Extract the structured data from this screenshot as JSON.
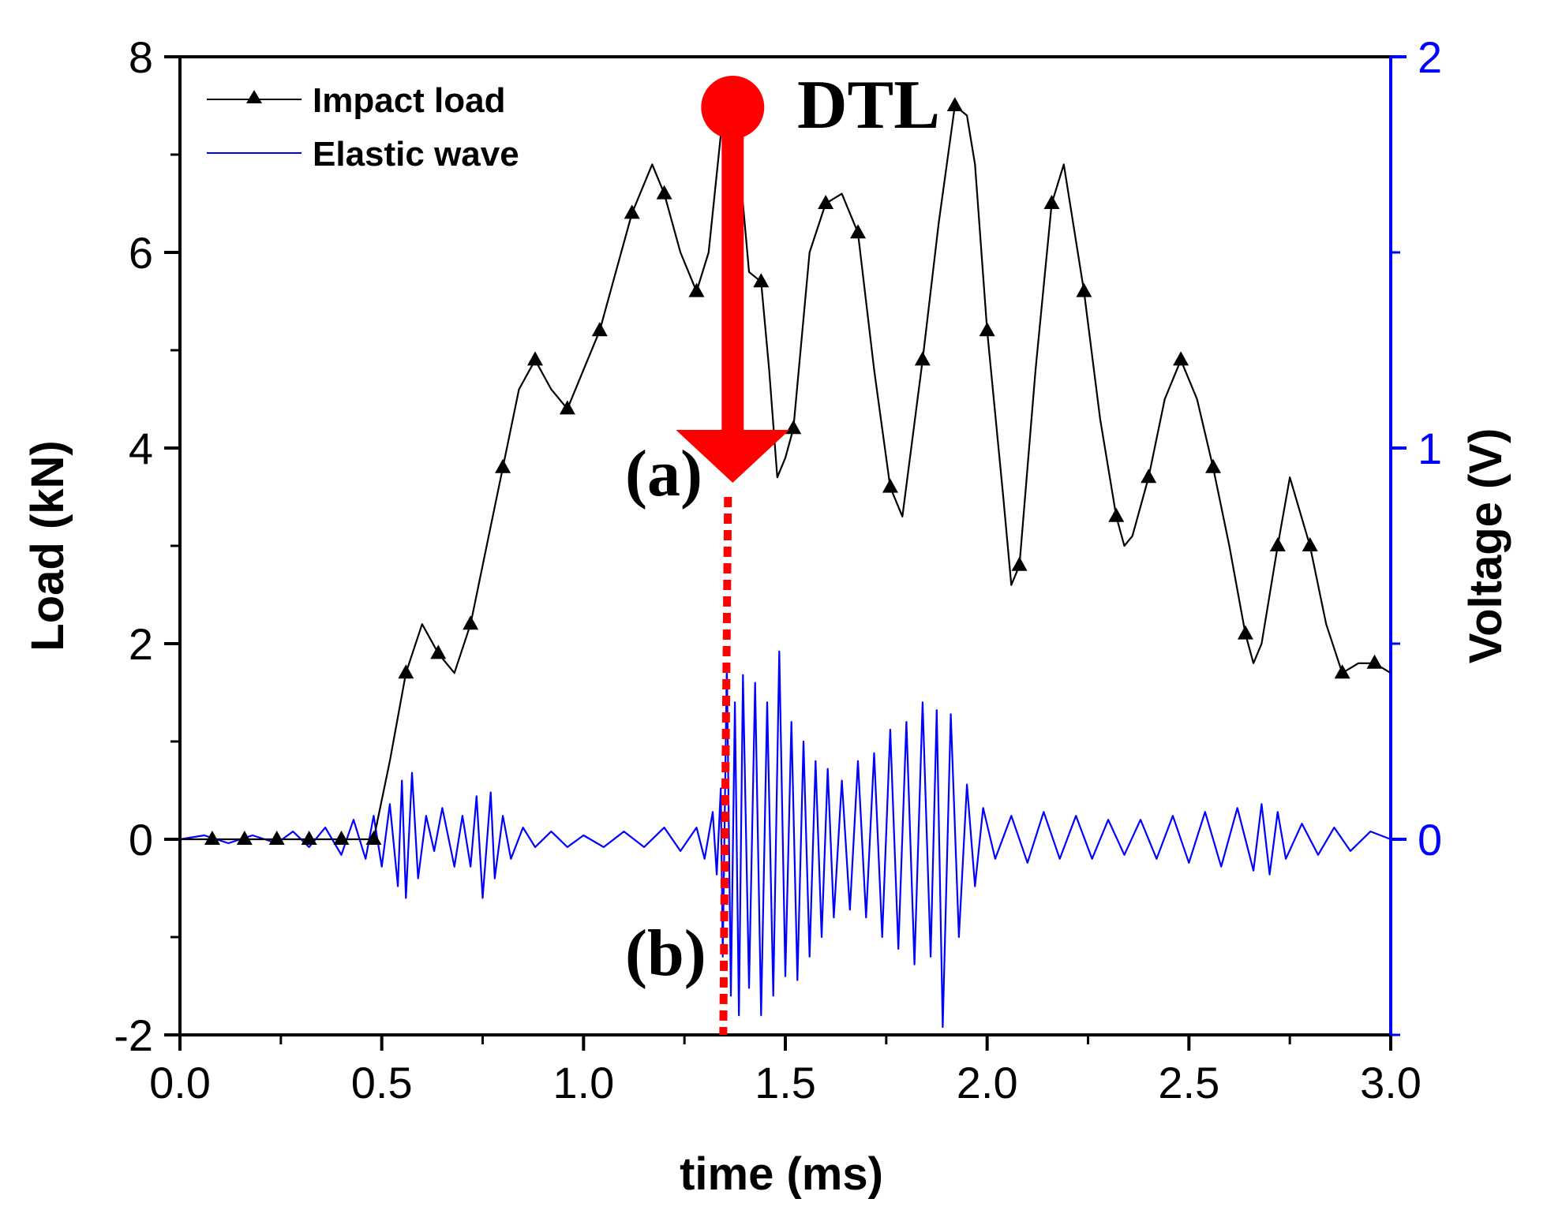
{
  "chart_data": {
    "type": "line",
    "xlabel": "time (ms)",
    "ylabel_left": "Load (kN)",
    "ylabel_right": "Voltage (V)",
    "xlim": [
      0,
      3
    ],
    "ylim_left": [
      -2,
      8
    ],
    "ylim_right": [
      -0.5,
      2
    ],
    "xticks": [
      "0.0",
      "0.5",
      "1.0",
      "1.5",
      "2.0",
      "2.5",
      "3.0"
    ],
    "yticks_left": [
      "-2",
      "0",
      "2",
      "4",
      "6",
      "8"
    ],
    "yticks_right": [
      "0",
      "1",
      "2"
    ],
    "colors": {
      "load": "#000000",
      "wave": "#0000ff",
      "annotation": "#ff0000",
      "right_axis": "#0000ff"
    },
    "legend": [
      {
        "name": "Impact load",
        "marker": "triangle"
      },
      {
        "name": "Elastic wave",
        "marker": "none"
      }
    ],
    "series": [
      {
        "name": "Impact load",
        "axis": "left",
        "x": [
          0,
          0.08,
          0.16,
          0.24,
          0.32,
          0.4,
          0.48,
          0.52,
          0.56,
          0.6,
          0.64,
          0.68,
          0.72,
          0.76,
          0.8,
          0.84,
          0.88,
          0.92,
          0.96,
          1.0,
          1.04,
          1.08,
          1.12,
          1.17,
          1.2,
          1.24,
          1.28,
          1.31,
          1.34,
          1.36,
          1.38,
          1.41,
          1.44,
          1.46,
          1.48,
          1.5,
          1.52,
          1.56,
          1.6,
          1.64,
          1.68,
          1.72,
          1.76,
          1.79,
          1.84,
          1.88,
          1.92,
          1.95,
          1.97,
          2.0,
          2.04,
          2.06,
          2.08,
          2.12,
          2.16,
          2.19,
          2.24,
          2.28,
          2.32,
          2.34,
          2.36,
          2.4,
          2.44,
          2.48,
          2.52,
          2.56,
          2.6,
          2.64,
          2.66,
          2.68,
          2.72,
          2.75,
          2.8,
          2.84,
          2.88,
          2.92,
          2.96,
          3.0
        ],
        "y": [
          0,
          0,
          0,
          0,
          0,
          0,
          0,
          0.8,
          1.7,
          2.2,
          1.9,
          1.7,
          2.2,
          3.0,
          3.8,
          4.6,
          4.9,
          4.6,
          4.4,
          4.8,
          5.2,
          5.8,
          6.4,
          6.9,
          6.6,
          6.0,
          5.6,
          6.0,
          7.2,
          7.5,
          7.2,
          5.8,
          5.7,
          4.8,
          3.7,
          3.9,
          4.2,
          6.0,
          6.5,
          6.6,
          6.2,
          4.8,
          3.6,
          3.3,
          4.9,
          6.3,
          7.5,
          7.4,
          6.9,
          5.2,
          3.5,
          2.6,
          2.8,
          4.8,
          6.5,
          6.9,
          5.6,
          4.3,
          3.3,
          3.0,
          3.1,
          3.7,
          4.5,
          4.9,
          4.5,
          3.8,
          3.0,
          2.1,
          1.8,
          2.0,
          3.0,
          3.7,
          3.0,
          2.2,
          1.7,
          1.8,
          1.8,
          1.7
        ],
        "marker_x": [
          0.08,
          0.16,
          0.24,
          0.32,
          0.4,
          0.48,
          0.56,
          0.64,
          0.72,
          0.8,
          0.88,
          0.96,
          1.04,
          1.12,
          1.2,
          1.28,
          1.36,
          1.44,
          1.52,
          1.6,
          1.68,
          1.76,
          1.84,
          1.92,
          2.0,
          2.08,
          2.16,
          2.24,
          2.32,
          2.4,
          2.48,
          2.56,
          2.64,
          2.72,
          2.8,
          2.88,
          2.96
        ]
      },
      {
        "name": "Elastic wave",
        "axis": "right",
        "x": [
          0,
          0.06,
          0.12,
          0.18,
          0.24,
          0.28,
          0.32,
          0.36,
          0.4,
          0.43,
          0.46,
          0.48,
          0.5,
          0.52,
          0.54,
          0.55,
          0.56,
          0.575,
          0.59,
          0.61,
          0.63,
          0.65,
          0.68,
          0.7,
          0.72,
          0.735,
          0.75,
          0.77,
          0.78,
          0.8,
          0.82,
          0.85,
          0.88,
          0.92,
          0.96,
          1.0,
          1.05,
          1.1,
          1.15,
          1.2,
          1.24,
          1.28,
          1.3,
          1.32,
          1.33,
          1.34,
          1.345,
          1.355,
          1.365,
          1.375,
          1.385,
          1.395,
          1.41,
          1.425,
          1.44,
          1.455,
          1.47,
          1.485,
          1.5,
          1.515,
          1.53,
          1.545,
          1.56,
          1.575,
          1.59,
          1.605,
          1.62,
          1.64,
          1.66,
          1.68,
          1.7,
          1.72,
          1.74,
          1.76,
          1.78,
          1.8,
          1.82,
          1.84,
          1.86,
          1.875,
          1.89,
          1.91,
          1.93,
          1.95,
          1.97,
          1.99,
          2.02,
          2.06,
          2.1,
          2.14,
          2.18,
          2.22,
          2.26,
          2.3,
          2.34,
          2.38,
          2.42,
          2.46,
          2.5,
          2.54,
          2.58,
          2.62,
          2.66,
          2.68,
          2.7,
          2.72,
          2.74,
          2.78,
          2.82,
          2.86,
          2.9,
          2.95,
          3.0
        ],
        "y": [
          0,
          0.01,
          -0.01,
          0.01,
          -0.01,
          0.02,
          -0.02,
          0.03,
          -0.04,
          0.05,
          -0.05,
          0.06,
          -0.07,
          0.09,
          -0.12,
          0.15,
          -0.15,
          0.17,
          -0.1,
          0.06,
          -0.03,
          0.08,
          -0.07,
          0.06,
          -0.07,
          0.11,
          -0.15,
          0.12,
          -0.1,
          0.06,
          -0.05,
          0.03,
          -0.02,
          0.02,
          -0.02,
          0.01,
          -0.02,
          0.02,
          -0.02,
          0.03,
          -0.03,
          0.03,
          -0.05,
          0.07,
          -0.09,
          0.13,
          -0.3,
          0.45,
          -0.4,
          0.35,
          -0.45,
          0.42,
          -0.38,
          0.4,
          -0.45,
          0.35,
          -0.4,
          0.48,
          -0.35,
          0.3,
          -0.36,
          0.25,
          -0.3,
          0.2,
          -0.25,
          0.18,
          -0.2,
          0.15,
          -0.18,
          0.2,
          -0.2,
          0.22,
          -0.25,
          0.28,
          -0.28,
          0.3,
          -0.32,
          0.35,
          -0.3,
          0.33,
          -0.48,
          0.32,
          -0.25,
          0.14,
          -0.12,
          0.08,
          -0.05,
          0.06,
          -0.06,
          0.07,
          -0.05,
          0.06,
          -0.05,
          0.05,
          -0.04,
          0.05,
          -0.05,
          0.06,
          -0.06,
          0.07,
          -0.07,
          0.08,
          -0.08,
          0.09,
          -0.09,
          0.07,
          -0.05,
          0.04,
          -0.04,
          0.03,
          -0.03,
          0.02,
          0
        ]
      }
    ],
    "annotations": {
      "top_label": "DTL",
      "label_a": "(a)",
      "label_b": "(b)",
      "marker_time_ms": 1.35
    }
  }
}
